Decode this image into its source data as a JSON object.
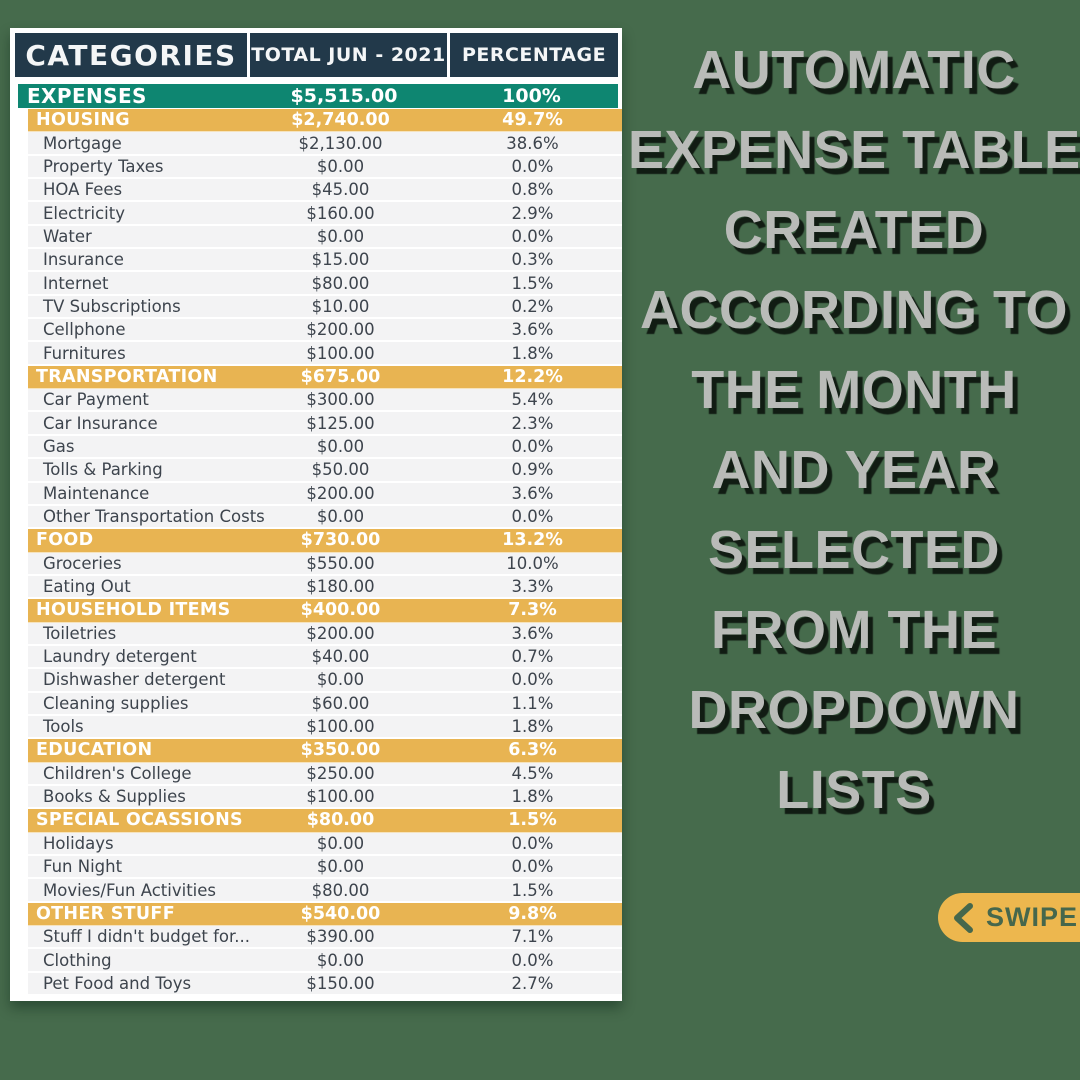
{
  "colors": {
    "background_green": "#466b4c",
    "header_navy": "#22394a",
    "expenses_teal": "#0e8671",
    "section_gold": "#e8b452",
    "panel_white": "#ffffff",
    "detail_text": "#3d444d",
    "headline_gray": "#b9bbb8",
    "swipe_gold": "#edb74e",
    "swipe_text_green": "#46674c"
  },
  "chart_data": {
    "type": "table",
    "columns": [
      "CATEGORIES",
      "TOTAL JUN - 2021",
      "PERCENTAGE"
    ],
    "expenses": {
      "label": "EXPENSES",
      "total": "$5,515.00",
      "pct": "100%"
    },
    "sections": [
      {
        "label": "HOUSING",
        "total": "$2,740.00",
        "pct": "49.7%",
        "items": [
          {
            "label": "Mortgage",
            "total": "$2,130.00",
            "pct": "38.6%"
          },
          {
            "label": "Property Taxes",
            "total": "$0.00",
            "pct": "0.0%"
          },
          {
            "label": "HOA Fees",
            "total": "$45.00",
            "pct": "0.8%"
          },
          {
            "label": "Electricity",
            "total": "$160.00",
            "pct": "2.9%"
          },
          {
            "label": "Water",
            "total": "$0.00",
            "pct": "0.0%"
          },
          {
            "label": "Insurance",
            "total": "$15.00",
            "pct": "0.3%"
          },
          {
            "label": "Internet",
            "total": "$80.00",
            "pct": "1.5%"
          },
          {
            "label": "TV Subscriptions",
            "total": "$10.00",
            "pct": "0.2%"
          },
          {
            "label": "Cellphone",
            "total": "$200.00",
            "pct": "3.6%"
          },
          {
            "label": "Furnitures",
            "total": "$100.00",
            "pct": "1.8%"
          }
        ]
      },
      {
        "label": "TRANSPORTATION",
        "total": "$675.00",
        "pct": "12.2%",
        "items": [
          {
            "label": "Car Payment",
            "total": "$300.00",
            "pct": "5.4%"
          },
          {
            "label": "Car Insurance",
            "total": "$125.00",
            "pct": "2.3%"
          },
          {
            "label": "Gas",
            "total": "$0.00",
            "pct": "0.0%"
          },
          {
            "label": "Tolls & Parking",
            "total": "$50.00",
            "pct": "0.9%"
          },
          {
            "label": "Maintenance",
            "total": "$200.00",
            "pct": "3.6%"
          },
          {
            "label": "Other Transportation Costs",
            "total": "$0.00",
            "pct": "0.0%"
          }
        ]
      },
      {
        "label": "FOOD",
        "total": "$730.00",
        "pct": "13.2%",
        "items": [
          {
            "label": "Groceries",
            "total": "$550.00",
            "pct": "10.0%"
          },
          {
            "label": "Eating Out",
            "total": "$180.00",
            "pct": "3.3%"
          }
        ]
      },
      {
        "label": "HOUSEHOLD ITEMS",
        "total": "$400.00",
        "pct": "7.3%",
        "items": [
          {
            "label": "Toiletries",
            "total": "$200.00",
            "pct": "3.6%"
          },
          {
            "label": "Laundry detergent",
            "total": "$40.00",
            "pct": "0.7%"
          },
          {
            "label": "Dishwasher detergent",
            "total": "$0.00",
            "pct": "0.0%"
          },
          {
            "label": "Cleaning supplies",
            "total": "$60.00",
            "pct": "1.1%"
          },
          {
            "label": "Tools",
            "total": "$100.00",
            "pct": "1.8%"
          }
        ]
      },
      {
        "label": "EDUCATION",
        "total": "$350.00",
        "pct": "6.3%",
        "items": [
          {
            "label": "Children's College",
            "total": "$250.00",
            "pct": "4.5%"
          },
          {
            "label": "Books & Supplies",
            "total": "$100.00",
            "pct": "1.8%"
          }
        ]
      },
      {
        "label": "SPECIAL OCASSIONS",
        "total": "$80.00",
        "pct": "1.5%",
        "items": [
          {
            "label": "Holidays",
            "total": "$0.00",
            "pct": "0.0%"
          },
          {
            "label": "Fun Night",
            "total": "$0.00",
            "pct": "0.0%"
          },
          {
            "label": "Movies/Fun Activities",
            "total": "$80.00",
            "pct": "1.5%"
          }
        ]
      },
      {
        "label": "OTHER STUFF",
        "total": "$540.00",
        "pct": "9.8%",
        "items": [
          {
            "label": "Stuff I didn't budget for...",
            "total": "$390.00",
            "pct": "7.1%"
          },
          {
            "label": "Clothing",
            "total": "$0.00",
            "pct": "0.0%"
          },
          {
            "label": "Pet Food and Toys",
            "total": "$150.00",
            "pct": "2.7%"
          }
        ]
      }
    ]
  },
  "headline": {
    "lines": [
      "AUTOMATIC",
      "EXPENSE TABLE",
      "CREATED",
      "ACCORDING TO",
      "THE MONTH",
      "AND YEAR",
      "SELECTED",
      "FROM THE",
      "DROPDOWN",
      "LISTS"
    ]
  },
  "swipe": {
    "label": "SWIPE"
  }
}
